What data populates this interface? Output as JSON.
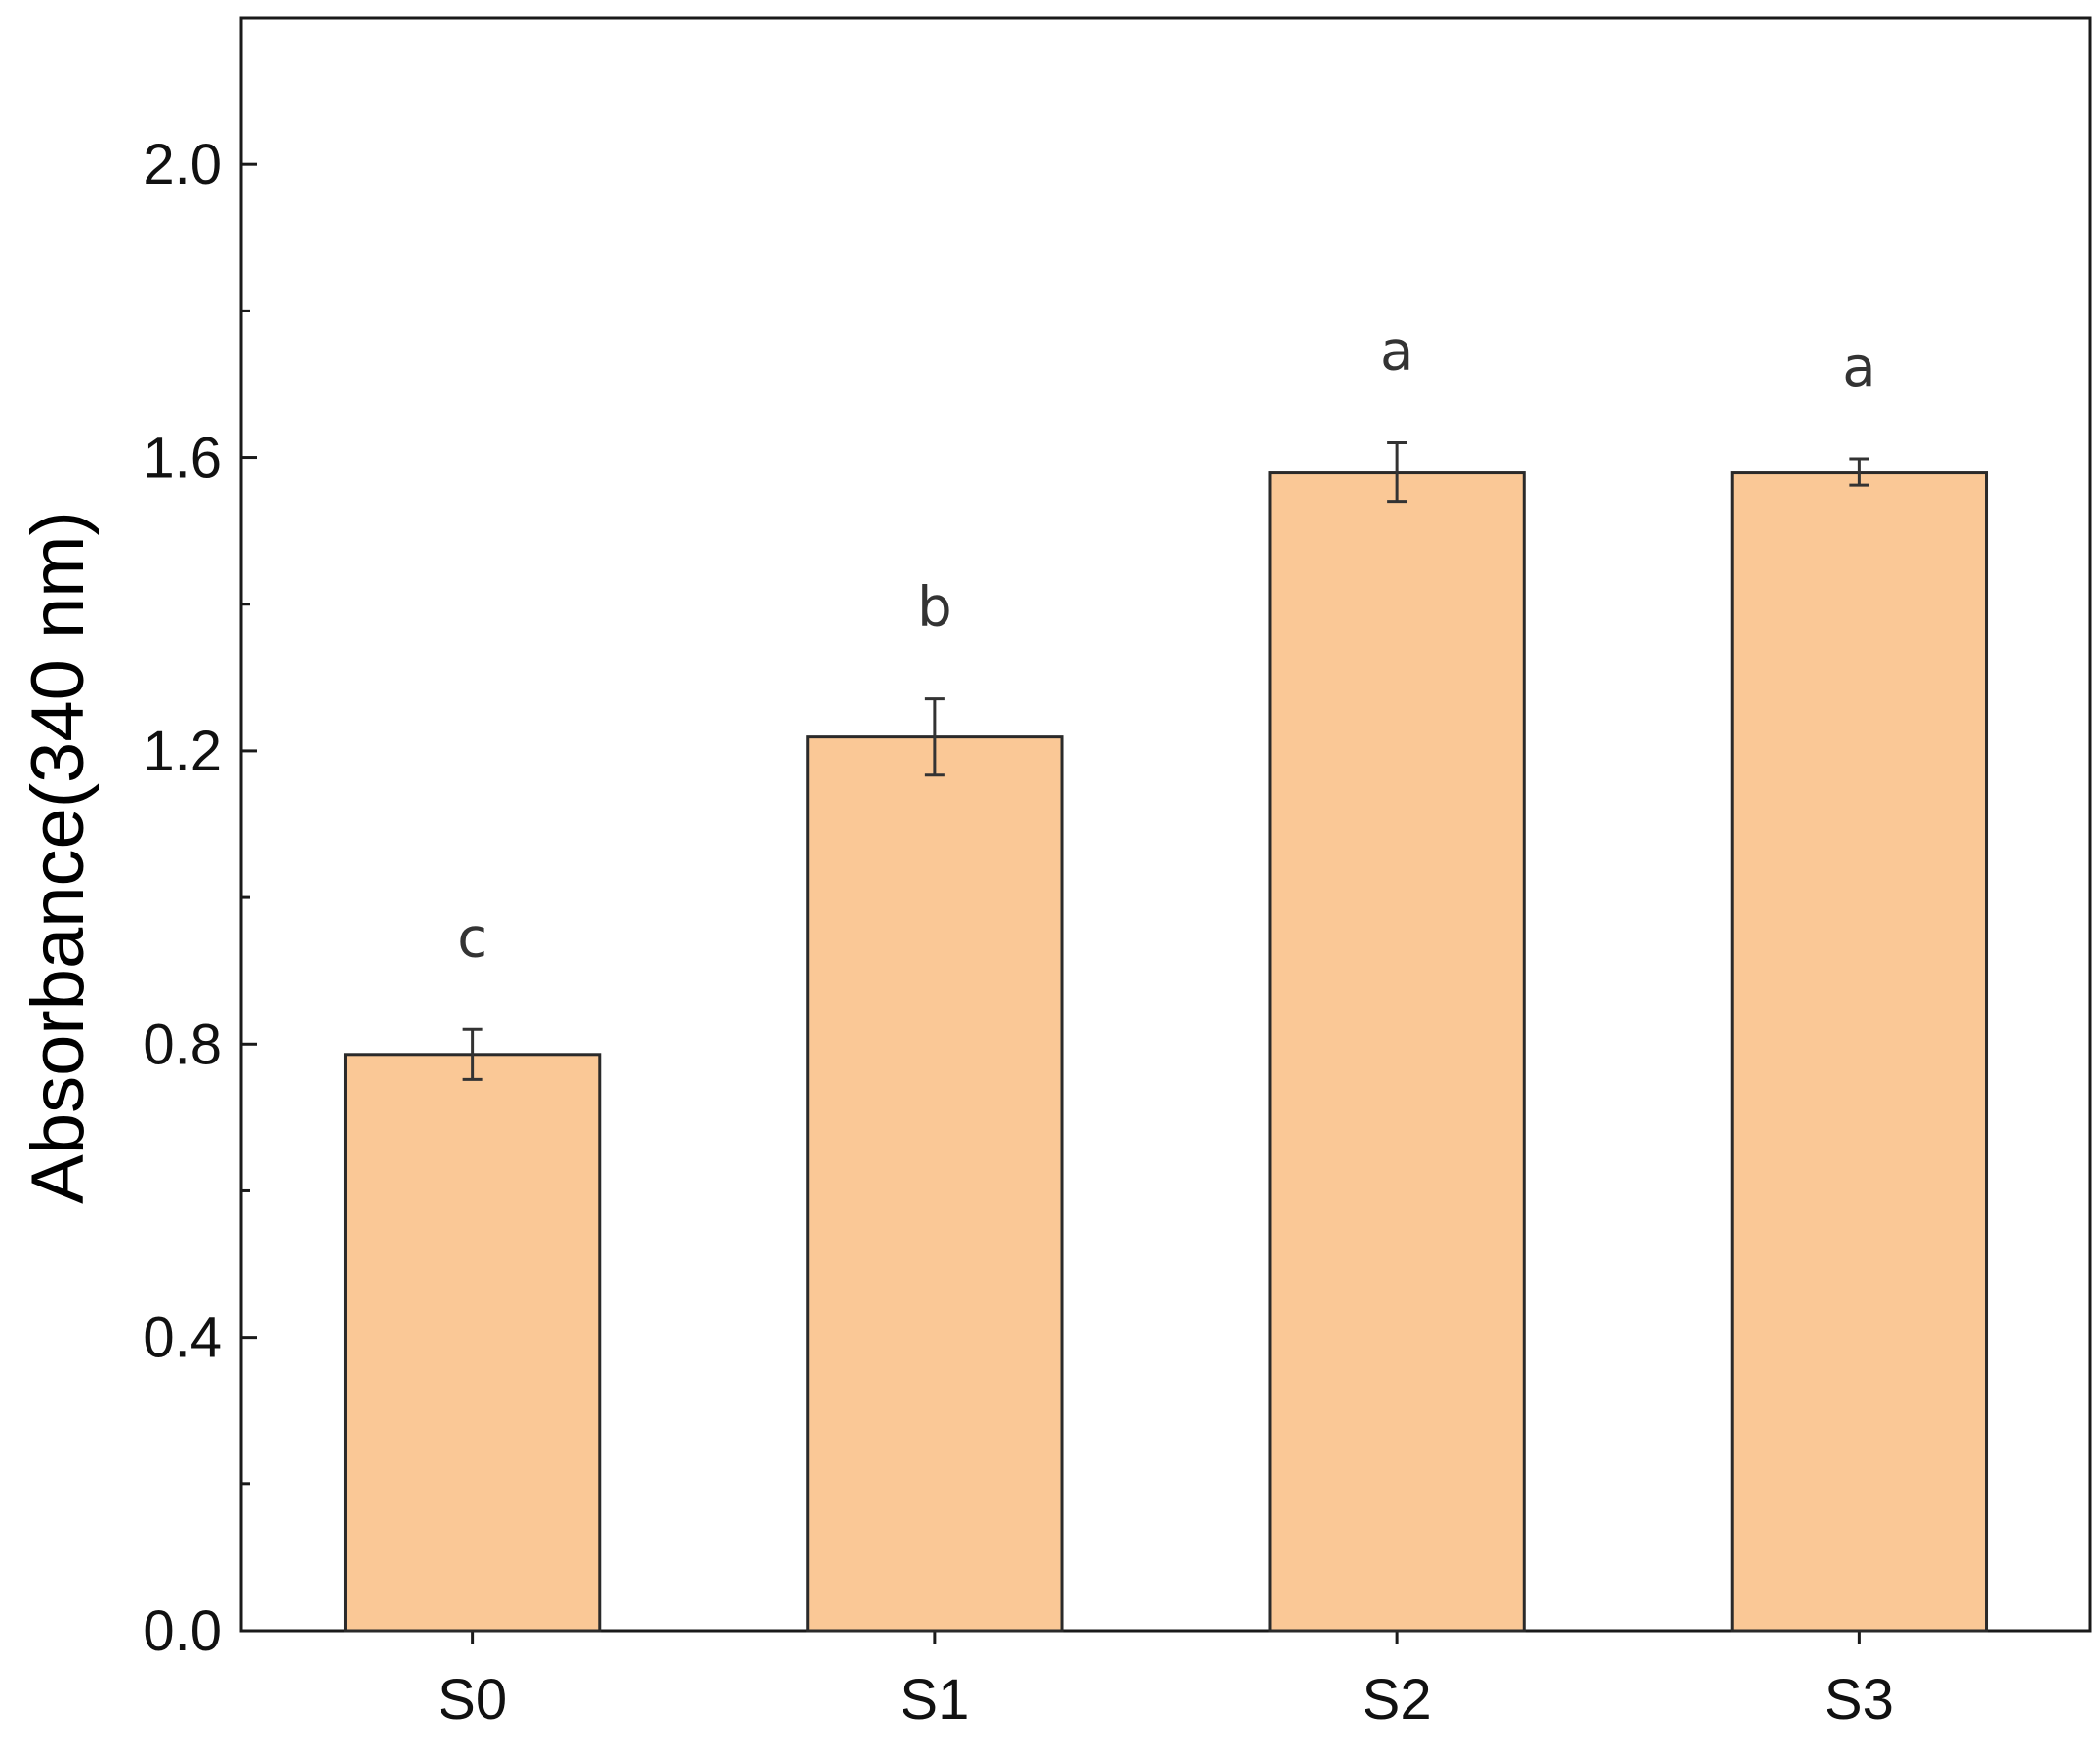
{
  "chart_data": {
    "type": "bar",
    "title": "",
    "xlabel": "",
    "ylabel": "Absorbance(340 nm)",
    "categories": [
      "S0",
      "S1",
      "S2",
      "S3"
    ],
    "values": [
      0.786,
      1.219,
      1.58,
      1.58
    ],
    "errors": [
      0.034,
      0.052,
      0.04,
      0.018
    ],
    "annotations": [
      "c",
      "b",
      "a",
      "a"
    ],
    "ylim": [
      0,
      2.2
    ],
    "yticks": [
      0.0,
      0.4,
      0.8,
      1.2,
      1.6,
      2.0
    ],
    "ytick_labels": [
      "0.0",
      "0.4",
      "0.8",
      "1.2",
      "1.6",
      "2.0"
    ],
    "grid": false,
    "legend": "none",
    "bar_color": "#FAC896",
    "edge_color": "#2a2a2a"
  }
}
